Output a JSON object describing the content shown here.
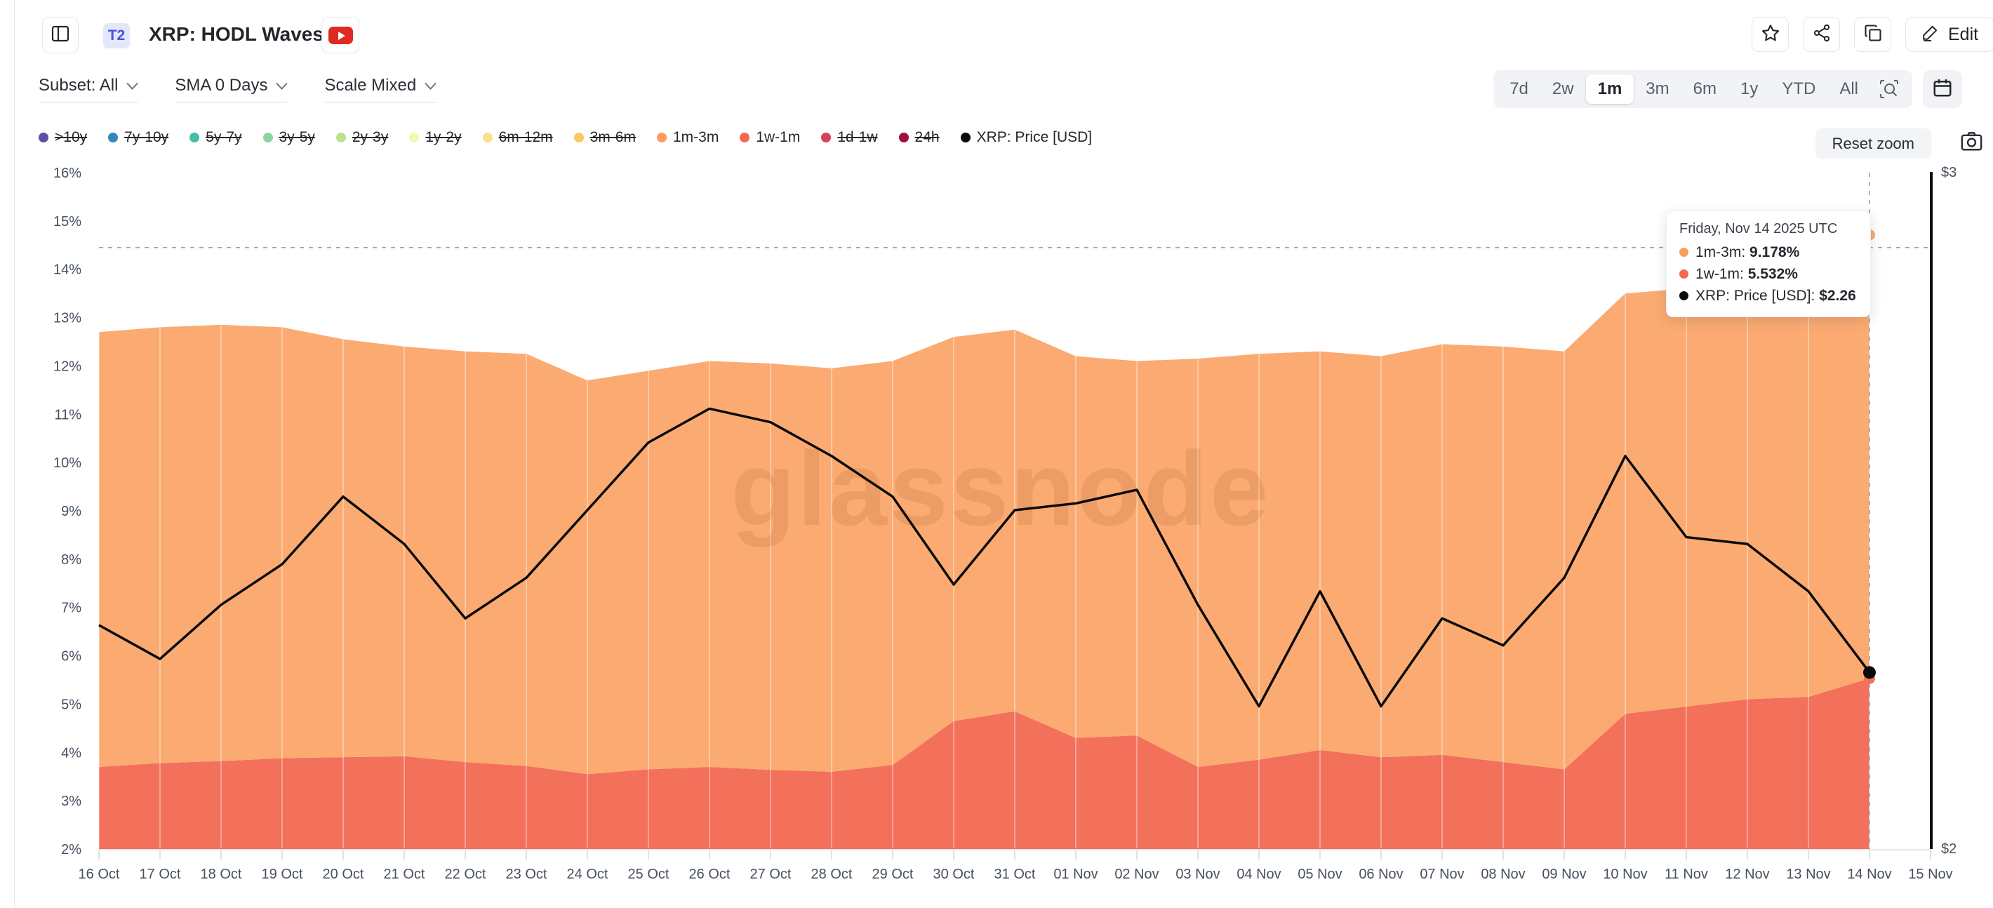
{
  "header": {
    "tier_badge": "T2",
    "title": "XRP: HODL Waves",
    "edit_label": "Edit"
  },
  "controls": {
    "subset": "Subset: All",
    "sma": "SMA 0 Days",
    "scale": "Scale Mixed"
  },
  "ranges": {
    "items": [
      "7d",
      "2w",
      "1m",
      "3m",
      "6m",
      "1y",
      "YTD",
      "All"
    ],
    "selected": "1m"
  },
  "reset_zoom_label": "Reset zoom",
  "watermark": "glassnode",
  "legend": {
    "items": [
      {
        "label": ">10y",
        "color": "#5e4fa2",
        "active": false
      },
      {
        "label": "7y-10y",
        "color": "#3288bd",
        "active": false
      },
      {
        "label": "5y-7y",
        "color": "#46bdab",
        "active": false
      },
      {
        "label": "3y-5y",
        "color": "#8ed3a4",
        "active": false
      },
      {
        "label": "2y-3y",
        "color": "#bce08d",
        "active": false
      },
      {
        "label": "1y-2y",
        "color": "#f3f9ad",
        "active": false
      },
      {
        "label": "6m-12m",
        "color": "#fbe289",
        "active": false
      },
      {
        "label": "3m-6m",
        "color": "#fcc763",
        "active": false
      },
      {
        "label": "1m-3m",
        "color": "#f99d5f",
        "active": true
      },
      {
        "label": "1w-1m",
        "color": "#f2694f",
        "active": true
      },
      {
        "label": "1d-1w",
        "color": "#d8405c",
        "active": false
      },
      {
        "label": "24h",
        "color": "#a00f44",
        "active": false
      },
      {
        "label": "XRP: Price [USD]",
        "color": "#0a0a0a",
        "active": true
      }
    ]
  },
  "tooltip": {
    "date": "Friday, Nov 14 2025 UTC",
    "rows": [
      {
        "label": "1m-3m:",
        "value": "9.178%",
        "color": "#f99d5f"
      },
      {
        "label": "1w-1m:",
        "value": "5.532%",
        "color": "#f2694f"
      },
      {
        "label": "XRP: Price [USD]:",
        "value": "$2.26",
        "color": "#0a0a0a"
      }
    ]
  },
  "chart_data": {
    "type": "area",
    "title": "XRP: HODL Waves",
    "categories": [
      "16 Oct",
      "17 Oct",
      "18 Oct",
      "19 Oct",
      "20 Oct",
      "21 Oct",
      "22 Oct",
      "23 Oct",
      "24 Oct",
      "25 Oct",
      "26 Oct",
      "27 Oct",
      "28 Oct",
      "29 Oct",
      "30 Oct",
      "31 Oct",
      "01 Nov",
      "02 Nov",
      "03 Nov",
      "04 Nov",
      "05 Nov",
      "06 Nov",
      "07 Nov",
      "08 Nov",
      "09 Nov",
      "10 Nov",
      "11 Nov",
      "12 Nov",
      "13 Nov",
      "14 Nov"
    ],
    "x_tick_labels": [
      "16 Oct",
      "17 Oct",
      "18 Oct",
      "19 Oct",
      "20 Oct",
      "21 Oct",
      "22 Oct",
      "23 Oct",
      "24 Oct",
      "25 Oct",
      "26 Oct",
      "27 Oct",
      "28 Oct",
      "29 Oct",
      "30 Oct",
      "31 Oct",
      "01 Nov",
      "02 Nov",
      "03 Nov",
      "04 Nov",
      "05 Nov",
      "06 Nov",
      "07 Nov",
      "08 Nov",
      "09 Nov",
      "10 Nov",
      "11 Nov",
      "12 Nov",
      "13 Nov",
      "14 Nov",
      "15 Nov"
    ],
    "series": [
      {
        "name": "1w-1m",
        "type": "area",
        "stack": true,
        "color": "#f3705b",
        "axis": "left",
        "values": [
          3.7,
          3.78,
          3.82,
          3.88,
          3.9,
          3.92,
          3.8,
          3.72,
          3.55,
          3.65,
          3.7,
          3.64,
          3.6,
          3.74,
          4.65,
          4.85,
          4.3,
          4.35,
          3.7,
          3.85,
          4.05,
          3.9,
          3.95,
          3.8,
          3.65,
          4.8,
          4.95,
          5.1,
          5.15,
          5.532
        ]
      },
      {
        "name": "1m-3m",
        "type": "area",
        "stack": true,
        "color": "#fbab71",
        "axis": "left",
        "values": [
          9.0,
          9.02,
          9.03,
          8.92,
          8.65,
          8.48,
          8.5,
          8.53,
          8.15,
          8.25,
          8.4,
          8.41,
          8.35,
          8.36,
          7.95,
          7.9,
          7.9,
          7.75,
          8.45,
          8.4,
          8.25,
          8.3,
          8.5,
          8.6,
          8.65,
          8.7,
          8.65,
          8.45,
          8.55,
          9.178
        ]
      },
      {
        "name": "XRP: Price [USD]",
        "type": "line",
        "color": "#0a0a0a",
        "axis": "right",
        "values": [
          2.33,
          2.28,
          2.36,
          2.42,
          2.52,
          2.45,
          2.34,
          2.4,
          2.5,
          2.6,
          2.65,
          2.63,
          2.58,
          2.52,
          2.39,
          2.5,
          2.51,
          2.53,
          2.36,
          2.21,
          2.38,
          2.21,
          2.34,
          2.3,
          2.4,
          2.58,
          2.46,
          2.45,
          2.38,
          2.26
        ]
      }
    ],
    "left_axis": {
      "unit": "%",
      "min": 2,
      "max": 16,
      "tick_step": 1,
      "ticks": [
        "2%",
        "3%",
        "4%",
        "5%",
        "6%",
        "7%",
        "8%",
        "9%",
        "10%",
        "11%",
        "12%",
        "13%",
        "14%",
        "15%",
        "16%"
      ]
    },
    "right_axis": {
      "unit": "USD",
      "min": 2,
      "max": 3,
      "ticks": [
        {
          "label": "$3",
          "value": 3
        },
        {
          "label": "$2",
          "value": 2
        }
      ]
    },
    "crosshair": {
      "x_label": "14 Nov",
      "x_index": 29,
      "y_percent": 14.45
    },
    "legend_position": "top",
    "grid": "vertical-day-lines"
  }
}
